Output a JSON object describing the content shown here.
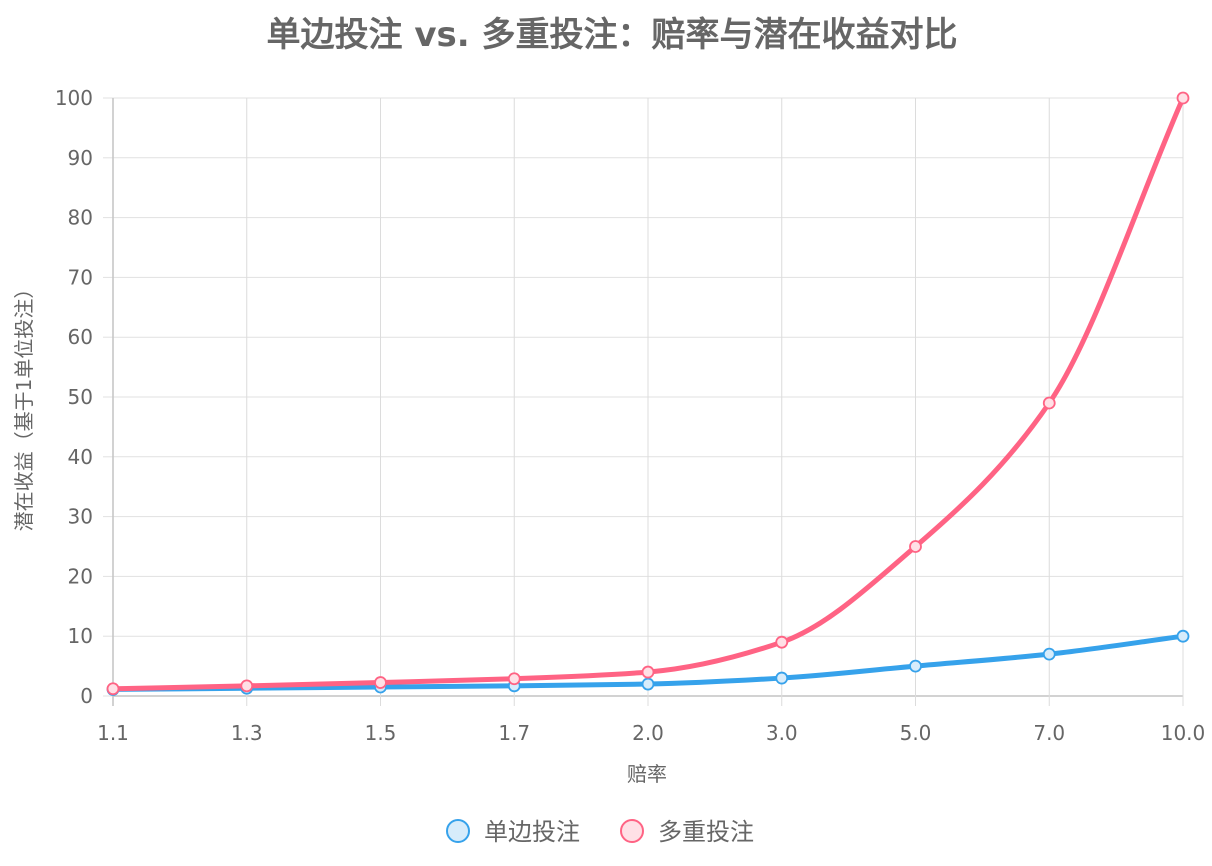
{
  "chart_data": {
    "type": "line",
    "title": "单边投注 vs. 多重投注：赔率与潜在收益对比",
    "xlabel": "赔率",
    "ylabel": "潜在收益（基于1单位投注）",
    "categories": [
      "1.1",
      "1.3",
      "1.5",
      "1.7",
      "2.0",
      "3.0",
      "5.0",
      "7.0",
      "10.0"
    ],
    "ylim": [
      0,
      100
    ],
    "yticks": [
      0,
      10,
      20,
      30,
      40,
      50,
      60,
      70,
      80,
      90,
      100
    ],
    "grid": true,
    "legend_position": "bottom",
    "series": [
      {
        "name": "单边投注",
        "values": [
          1.1,
          1.3,
          1.5,
          1.7,
          2.0,
          3.0,
          5.0,
          7.0,
          10.0
        ],
        "color": "#36a2eb",
        "fill": "#d7ecfb"
      },
      {
        "name": "多重投注",
        "values": [
          1.21,
          1.69,
          2.25,
          2.89,
          4.0,
          9.0,
          25.0,
          49.0,
          100.0
        ],
        "color": "#ff6384",
        "fill": "#ffe0e6"
      }
    ]
  }
}
